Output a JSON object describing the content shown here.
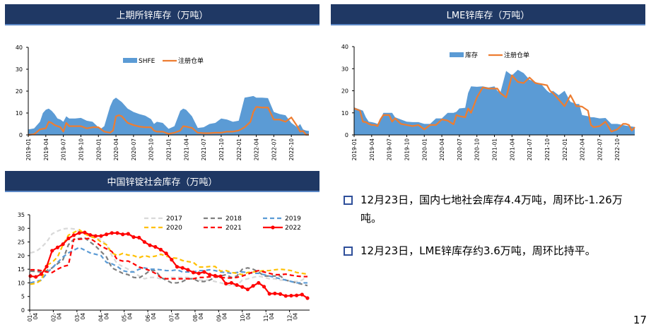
{
  "panels": {
    "shfe_title": "上期所锌库存（万吨）",
    "lme_title": "LME锌库存（万吨）",
    "social_title": "中国锌锭社会库存（万吨）"
  },
  "bullets": [
    "12月23日，国内七地社会库存4.4万吨，周环比-1.26万吨。",
    "12月23日，LME锌库存约3.6万吨，周环比持平。"
  ],
  "page_number": "17",
  "colors": {
    "header_bg": "#1f3864",
    "area": "#5b9bd5",
    "orange": "#ed7d31",
    "y2017": "#d9d9d9",
    "y2018": "#7f7f7f",
    "y2019": "#5b9bd5",
    "y2020": "#ffc000",
    "y2021": "#ff0000",
    "y2022": "#ff0000"
  },
  "chart_data": [
    {
      "type": "area",
      "title": "上期所锌库存（万吨）",
      "ylim": [
        0,
        40
      ],
      "yticks": [
        "0",
        "10",
        "20",
        "30",
        "40"
      ],
      "xticks": [
        "2019-01",
        "2019-04",
        "2019-07",
        "2019-10",
        "2020-01",
        "2020-04",
        "2020-07",
        "2020-10",
        "2021-01",
        "2021-04",
        "2021-07",
        "2021-10",
        "2022-01",
        "2022-04",
        "2022-07",
        "2022-10"
      ],
      "legend": [
        "SHFE",
        "注册仓单"
      ],
      "x_months": [
        0,
        1,
        2,
        2.5,
        3,
        3.5,
        4,
        4.5,
        5,
        5.5,
        6,
        6.5,
        7,
        8,
        9,
        10,
        11,
        12,
        12.5,
        13,
        14,
        14.5,
        15,
        15.5,
        16,
        17,
        18,
        19,
        20,
        21,
        21.5,
        22,
        23,
        24,
        25,
        26,
        26.5,
        27,
        27.5,
        28,
        29,
        30,
        31,
        32,
        33,
        34,
        35,
        36,
        37,
        38,
        38.5,
        39,
        40,
        41,
        42,
        43,
        44,
        45,
        46,
        46.5,
        47,
        47.5,
        48
      ],
      "series": [
        {
          "name": "SHFE",
          "values": [
            2.5,
            3,
            6,
            10,
            11.5,
            12,
            11,
            9.5,
            7.5,
            7,
            6,
            8.5,
            7.5,
            7.5,
            7.8,
            6.5,
            6,
            3.5,
            3,
            4,
            13,
            16,
            17,
            16,
            15,
            12,
            10.5,
            9.5,
            8.8,
            7.2,
            5,
            6,
            5.5,
            2.8,
            4,
            11,
            12,
            11.5,
            10,
            8.5,
            3.2,
            3.5,
            5,
            5.5,
            7.5,
            7,
            6,
            6.5,
            17,
            17.5,
            17.8,
            17,
            17,
            16.8,
            10.5,
            9.5,
            9,
            5.5,
            3.5,
            5,
            2.5,
            2,
            1.8
          ]
        },
        {
          "name": "注册仓单",
          "values": [
            0,
            0.3,
            2.5,
            2.8,
            3,
            6,
            5.5,
            4.5,
            4,
            3.5,
            1.5,
            5.5,
            4,
            4,
            4,
            3,
            3.5,
            3.5,
            2.5,
            1.5,
            1,
            2,
            8.5,
            9,
            8.5,
            5.5,
            4.5,
            3.8,
            3.5,
            3.5,
            2,
            1.5,
            1.5,
            0.5,
            1,
            2,
            4,
            3.8,
            3.5,
            3.2,
            1,
            0.8,
            0.8,
            1,
            1,
            1.5,
            1.5,
            2,
            3.5,
            6,
            10.5,
            12.8,
            12.5,
            12.5,
            7,
            7,
            6,
            8,
            4,
            1.5,
            1.8,
            0.1,
            0.1
          ]
        }
      ]
    },
    {
      "type": "area",
      "title": "LME锌库存（万吨）",
      "ylim": [
        0,
        40
      ],
      "yticks": [
        "0",
        "10",
        "20",
        "30",
        "40"
      ],
      "xticks": [
        "2019-01",
        "2019-04",
        "2019-07",
        "2019-10",
        "2020-01",
        "2020-04",
        "2020-07",
        "2020-10",
        "2021-01",
        "2021-04",
        "2021-07",
        "2021-10",
        "2022-01",
        "2022-04",
        "2022-07",
        "2022-10"
      ],
      "legend": [
        "库存",
        "注册仓单"
      ],
      "x_months": [
        0,
        1,
        1.5,
        2,
        2.5,
        3,
        3.5,
        4,
        4.5,
        5,
        6,
        6.5,
        7,
        8,
        9,
        10,
        11,
        12,
        13,
        14,
        15,
        16,
        17,
        17.5,
        18,
        19,
        19.5,
        20,
        21,
        22,
        23,
        24,
        24.5,
        25,
        26,
        27,
        28,
        29,
        30,
        31,
        32,
        33,
        33.5,
        34,
        35,
        36,
        37,
        38,
        38.5,
        39,
        40,
        40.5,
        41,
        42,
        43,
        44,
        45,
        46,
        46.5,
        47,
        47.5,
        48
      ],
      "series": [
        {
          "name": "库存",
          "values": [
            12.5,
            11.5,
            11,
            8,
            6,
            5.8,
            5.5,
            5,
            7,
            10,
            10,
            10,
            8,
            7,
            6,
            5.8,
            5.8,
            5,
            5,
            7.5,
            7.5,
            10,
            10,
            10.5,
            12,
            12.3,
            19,
            22,
            21.8,
            22,
            21.5,
            22,
            20,
            19,
            29,
            27,
            29.5,
            28,
            25,
            24,
            23,
            20,
            19,
            20,
            18,
            20,
            15,
            14,
            14,
            9,
            8.5,
            8,
            8,
            7.5,
            7.7,
            5,
            5,
            4.5,
            4.2,
            4,
            3.8,
            3.6
          ]
        },
        {
          "name": "注册仓单",
          "values": [
            12,
            11,
            6,
            5.8,
            5,
            4.5,
            4.5,
            4,
            7,
            9,
            9,
            6,
            7.5,
            5,
            4.5,
            4,
            4.5,
            2.5,
            4.5,
            4.5,
            7,
            6.5,
            4.8,
            9,
            8.5,
            8,
            12,
            10,
            17,
            21.5,
            21,
            21,
            21,
            19,
            17,
            27,
            24,
            23.5,
            26,
            23.5,
            23,
            22.5,
            20,
            19,
            16,
            13,
            18,
            13,
            13,
            12.8,
            11,
            4.5,
            3.5,
            4,
            6,
            1.5,
            2.5,
            5,
            5,
            4.5,
            2,
            3.5,
            1.5
          ]
        }
      ]
    },
    {
      "type": "line",
      "title": "中国锌锭社会库存（万吨）",
      "ylim": [
        0,
        35
      ],
      "yticks": [
        "0",
        "5",
        "10",
        "15",
        "20",
        "25",
        "30",
        "35"
      ],
      "xticks": [
        "01-04",
        "02-04",
        "03-04",
        "04-04",
        "05-04",
        "06-04",
        "07-04",
        "08-04",
        "09-04",
        "10-04",
        "11-04",
        "12-04"
      ],
      "x_weeks": [
        0,
        1,
        2,
        3,
        4,
        5,
        6,
        7,
        8,
        9,
        10,
        11,
        12,
        13,
        14,
        15,
        16,
        17,
        18,
        19,
        20,
        21,
        22,
        23,
        24,
        25,
        26,
        27,
        28,
        29,
        30,
        31,
        32,
        33,
        34,
        35,
        36,
        37,
        38,
        39,
        40,
        41,
        42,
        43,
        44,
        45,
        46,
        47,
        48,
        49,
        50,
        51
      ],
      "series": [
        {
          "name": "2017",
          "values": [
            21,
            21.5,
            23,
            25,
            28,
            29,
            29.8,
            30,
            29.8,
            29,
            28,
            27,
            26.5,
            26,
            24,
            20,
            17,
            16,
            15,
            14,
            12.5,
            11.5,
            12,
            12,
            11.5,
            11.5,
            12,
            12,
            12,
            12,
            11.5,
            11,
            11,
            11,
            10.5,
            10,
            9.5,
            9,
            9,
            11,
            11.5,
            12,
            12.5,
            12,
            11.5,
            11.5,
            11,
            11,
            10.5,
            10.5,
            11,
            12.5
          ]
        },
        {
          "name": "2018",
          "values": [
            14.3,
            14.2,
            14,
            14.5,
            15.5,
            17,
            18.5,
            24,
            26,
            26.3,
            26.5,
            25,
            23.5,
            21.5,
            19.5,
            15.5,
            14.5,
            13.5,
            13,
            12,
            11.8,
            13,
            14.5,
            14.5,
            12,
            11,
            10,
            10,
            10.5,
            11.5,
            11.5,
            10.5,
            10.5,
            11,
            12,
            12.5,
            13,
            12,
            12.5,
            15,
            15.5,
            15,
            14,
            12.5,
            12.5,
            12.5,
            12.5,
            11,
            10.5,
            10,
            9.5,
            9
          ]
        },
        {
          "name": "2019",
          "values": [
            10,
            10.5,
            11,
            13.5,
            15.5,
            17.5,
            19.5,
            21,
            22,
            23,
            22,
            21,
            20.5,
            20,
            17.5,
            17,
            16,
            14.5,
            14,
            14,
            15,
            15.5,
            15,
            15,
            14.8,
            14.5,
            14.5,
            14.8,
            14,
            14,
            14,
            14.5,
            14.5,
            14.8,
            14.5,
            14,
            13.8,
            13.5,
            13.8,
            14,
            13.8,
            13.5,
            13.5,
            13,
            12.5,
            12,
            11.5,
            11,
            10.5,
            10,
            10,
            10
          ]
        },
        {
          "name": "2020",
          "values": [
            9.5,
            9.8,
            11,
            16.5,
            17.5,
            19.5,
            24,
            27.5,
            28.5,
            29.5,
            28,
            27,
            26.5,
            25,
            24,
            21,
            20,
            20.8,
            20.2,
            20,
            19.2,
            20,
            19.5,
            19.8,
            20.5,
            19.8,
            19.2,
            19,
            18.2,
            17.8,
            17.5,
            15.8,
            15.8,
            16,
            16,
            14.3,
            14.5,
            13.8,
            13.5,
            13,
            13.8,
            14,
            14.2,
            14.5,
            14.5,
            14.8,
            15,
            14.8,
            14.5,
            13.8,
            13.5,
            13.2
          ]
        },
        {
          "name": "2021",
          "values": [
            14.8,
            14.8,
            14.5,
            14,
            13.8,
            15,
            16,
            16.5,
            26,
            26,
            26.2,
            26.3,
            25,
            23.5,
            22.5,
            21.5,
            18.5,
            18,
            18,
            17,
            15.8,
            15.2,
            14.5,
            13.5,
            12,
            11.5,
            11.5,
            11.5,
            11.5,
            11.5,
            11.5,
            12,
            12,
            12.2,
            12.2,
            12,
            11.8,
            11.8,
            12,
            12.5,
            13.2,
            14,
            14.5,
            14,
            13.5,
            13,
            13,
            13.2,
            12.8,
            12.5,
            12.3,
            12.3
          ]
        },
        {
          "name": "2022",
          "values": [
            12.5,
            12.2,
            13.2,
            16,
            21.8,
            23,
            24.2,
            26.3,
            27.5,
            28.3,
            28.5,
            27.6,
            27.2,
            27.2,
            27.8,
            28.3,
            28.3,
            27.8,
            28,
            26.8,
            26.6,
            25,
            23.8,
            23.2,
            22.2,
            20.8,
            18.5,
            15.9,
            15.5,
            14.8,
            13.8,
            13.5,
            14,
            13,
            12.6,
            12.4,
            9.7,
            10,
            9.2,
            8.5,
            7.6,
            8.9,
            10,
            8.6,
            6,
            6.1,
            5.9,
            5.2,
            5.3,
            5.4,
            5.7,
            4.4
          ]
        }
      ]
    }
  ]
}
